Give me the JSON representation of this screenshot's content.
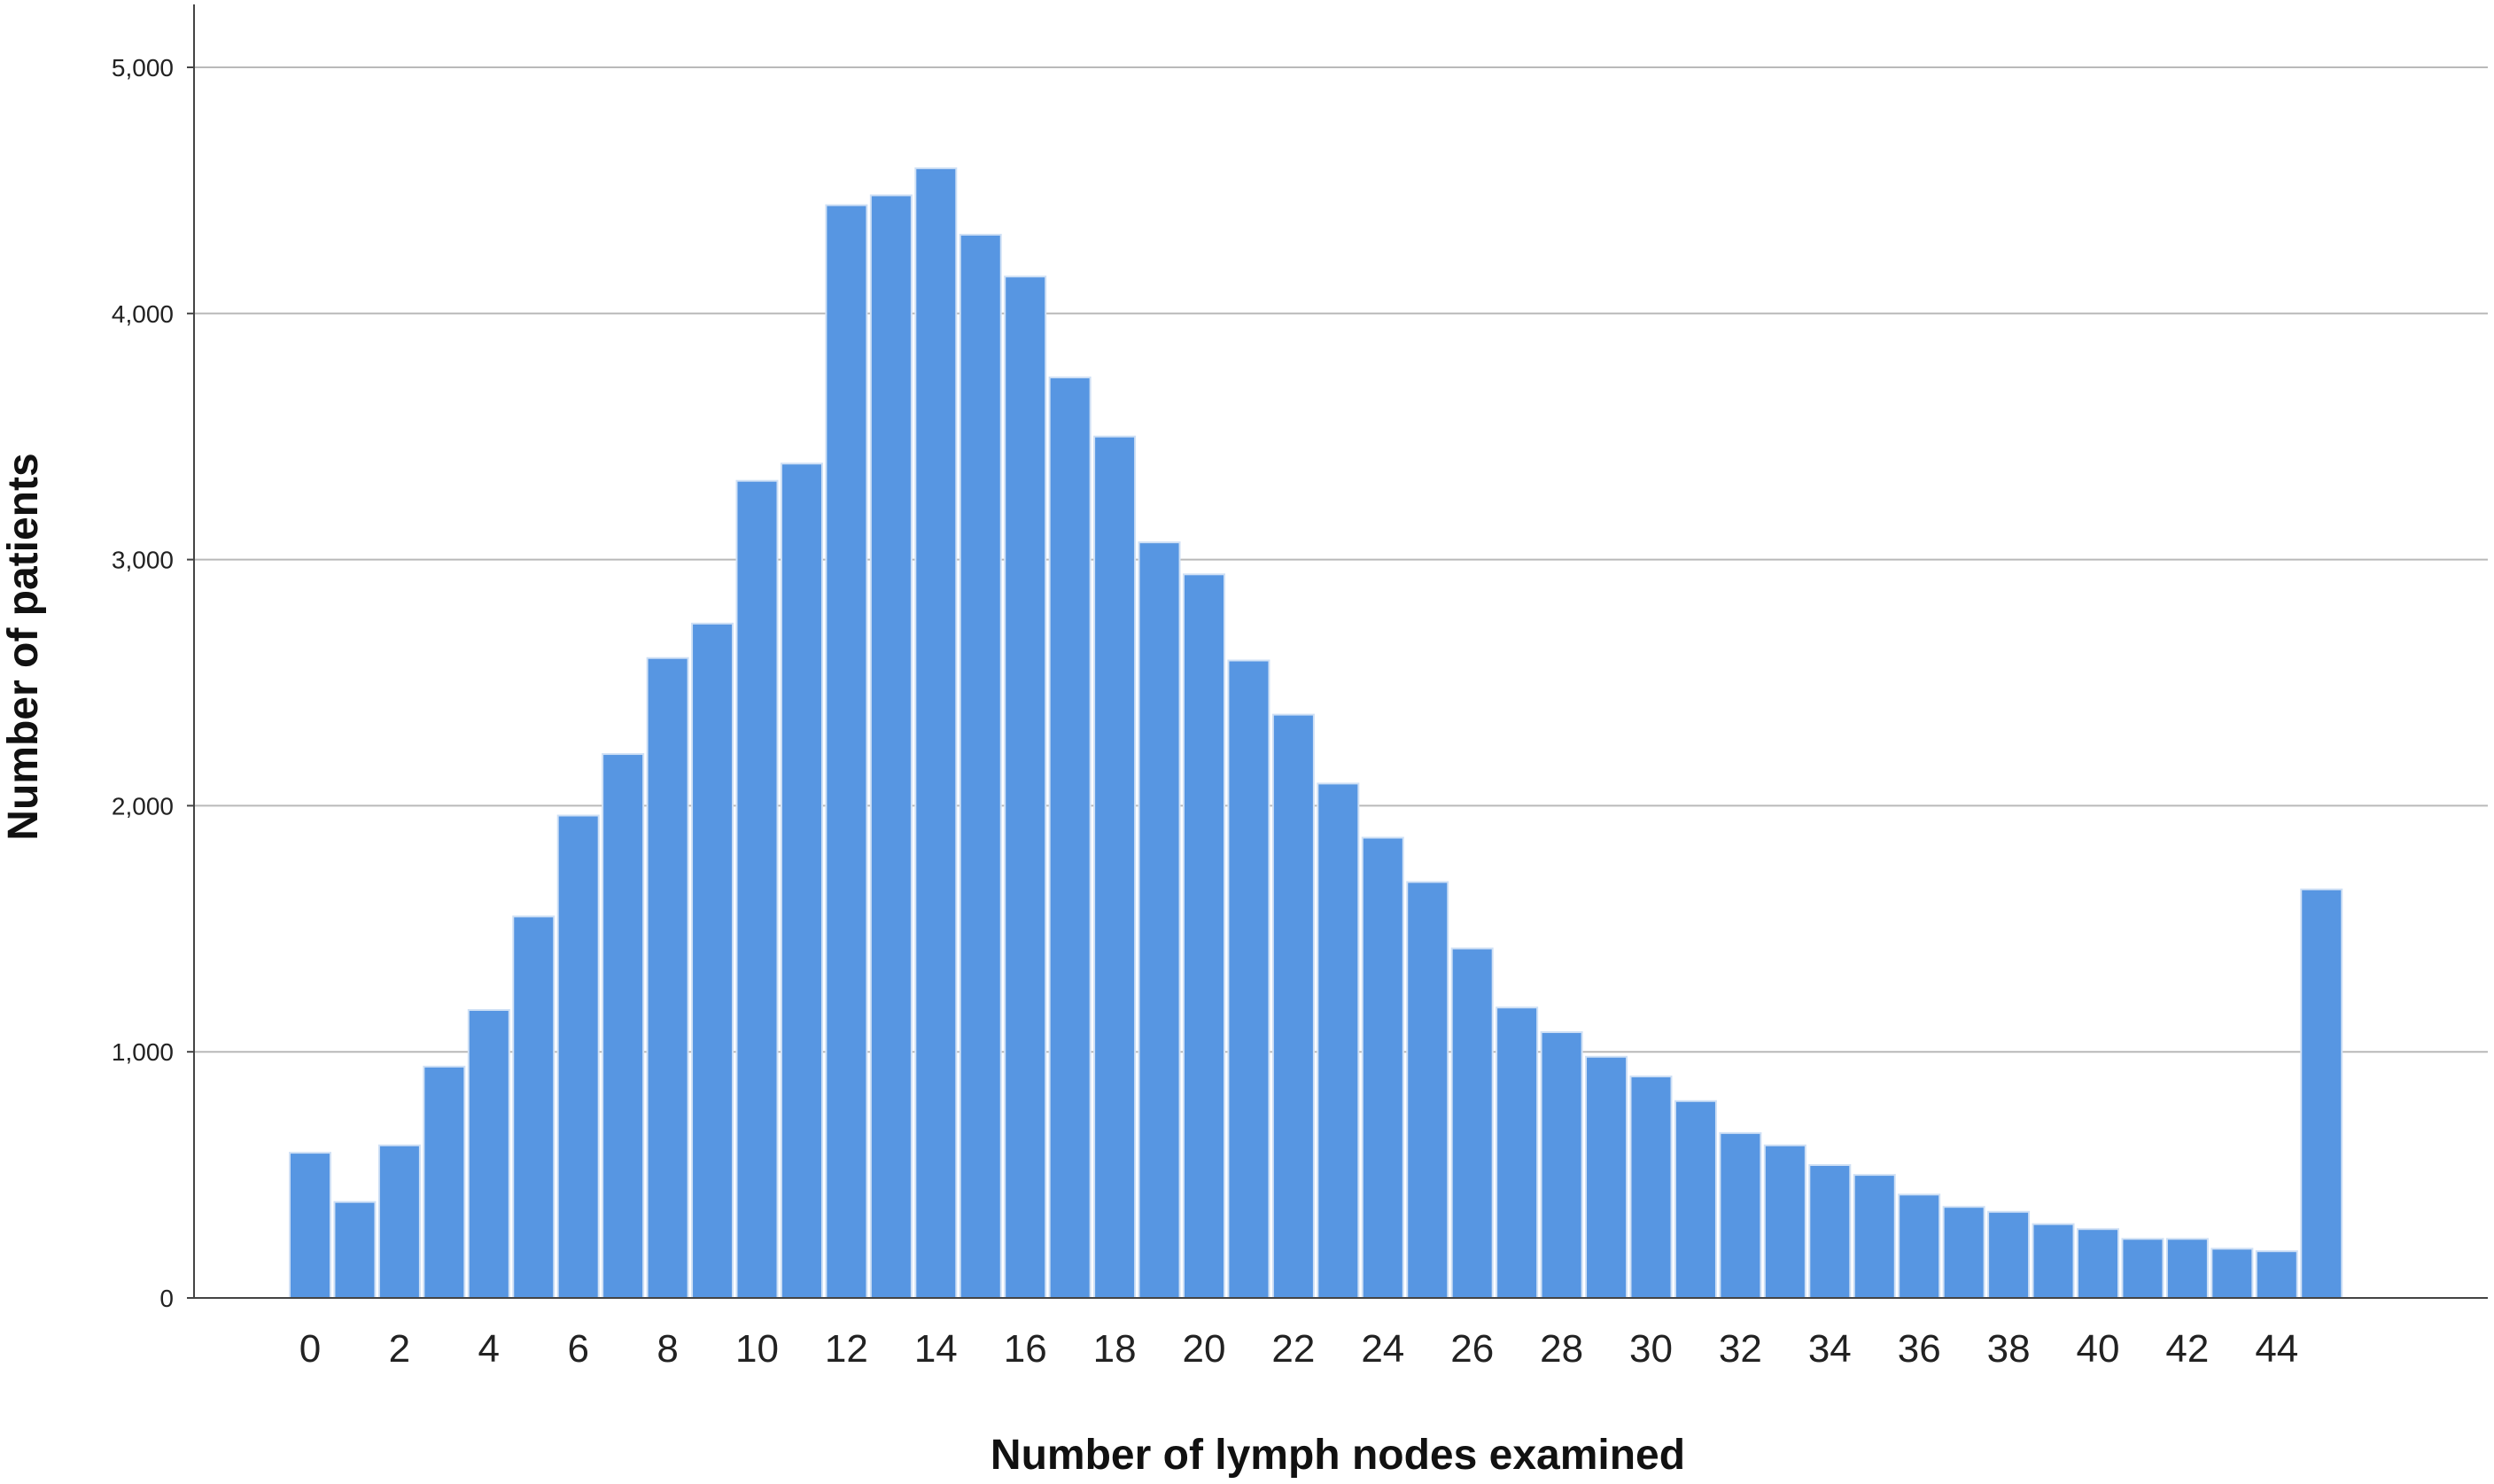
{
  "chart_data": {
    "type": "bar",
    "title": "",
    "xlabel": "Number of lymph nodes examined",
    "ylabel": "Number of patients",
    "ylim": [
      0,
      5000
    ],
    "yticks": [
      0,
      1000,
      2000,
      3000,
      4000,
      5000
    ],
    "ytick_labels": [
      "0",
      "1,000",
      "2,000",
      "3,000",
      "4,000",
      "5,000"
    ],
    "xtick_labels": [
      "0",
      "2",
      "4",
      "6",
      "8",
      "10",
      "12",
      "14",
      "16",
      "18",
      "20",
      "22",
      "24",
      "26",
      "28",
      "30",
      "32",
      "34",
      "36",
      "38",
      "40",
      "42",
      "44"
    ],
    "categories": [
      "0",
      "1",
      "2",
      "3",
      "4",
      "5",
      "6",
      "7",
      "8",
      "9",
      "10",
      "11",
      "12",
      "13",
      "14",
      "15",
      "16",
      "17",
      "18",
      "19",
      "20",
      "21",
      "22",
      "23",
      "24",
      "25",
      "26",
      "27",
      "28",
      "29",
      "30",
      "31",
      "32",
      "33",
      "34",
      "35",
      "36",
      "37",
      "38",
      "39",
      "40",
      "41",
      "42",
      "43",
      "44",
      "45"
    ],
    "values": [
      590,
      390,
      620,
      940,
      1170,
      1550,
      1960,
      2210,
      2600,
      2740,
      3320,
      3390,
      4440,
      4480,
      4590,
      4320,
      4150,
      3740,
      3500,
      3070,
      2940,
      2590,
      2370,
      2090,
      1870,
      1690,
      1420,
      1180,
      1080,
      980,
      900,
      800,
      670,
      620,
      540,
      500,
      420,
      370,
      350,
      300,
      280,
      240,
      240,
      200,
      190,
      1660
    ],
    "bar_color": "#5796e2",
    "bar_edge_color": "#cfe0f5",
    "grid": true,
    "legend": "none"
  }
}
